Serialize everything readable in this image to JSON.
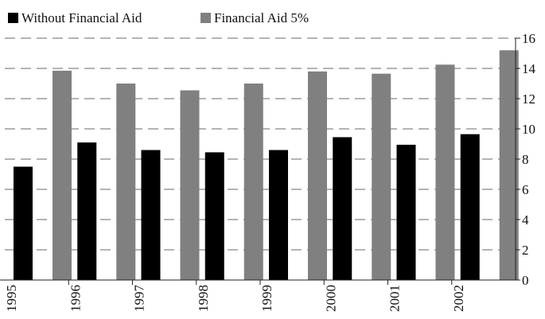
{
  "chart_data": {
    "type": "bar",
    "categories": [
      "1995",
      "1996",
      "1997",
      "1998",
      "1999",
      "2000",
      "2001",
      "2002"
    ],
    "series": [
      {
        "name": "Without Financial Aid",
        "color": "#000000",
        "values": [
          7.5,
          9.1,
          8.6,
          8.45,
          8.6,
          9.45,
          8.95,
          9.65
        ]
      },
      {
        "name": "Financial Aid 5%",
        "color": "#808080",
        "values": [
          13.85,
          13.0,
          12.55,
          13.0,
          13.8,
          13.65,
          14.25,
          15.2
        ]
      }
    ],
    "ylim": [
      0,
      16
    ],
    "yticks": [
      0,
      2,
      4,
      6,
      8,
      10,
      12,
      14,
      16
    ],
    "yaxis_position": "right",
    "grid": true,
    "legend_position": "top-left",
    "xlabel": "",
    "ylabel": "",
    "title": ""
  }
}
